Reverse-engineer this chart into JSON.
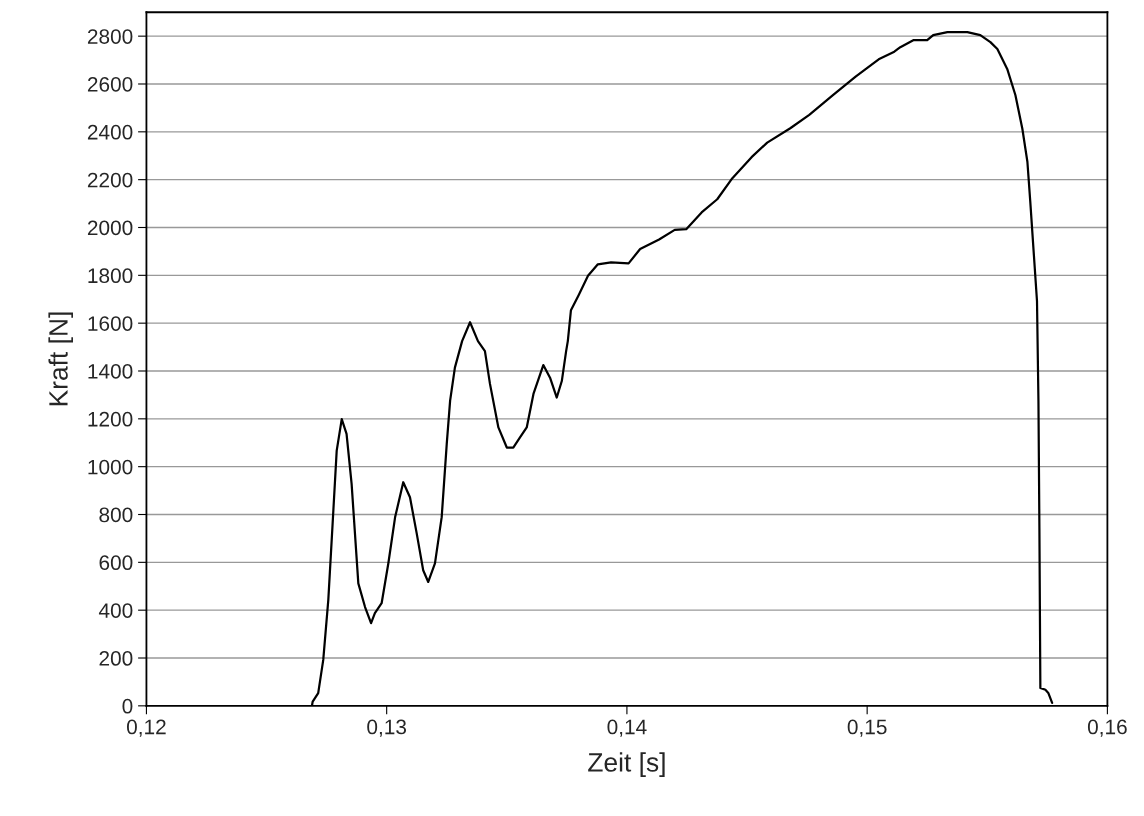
{
  "chart_data": {
    "type": "line",
    "xlabel": "Zeit [s]",
    "ylabel": "Kraft [N]",
    "xlim": [
      0.12,
      0.16
    ],
    "xticks": [
      {
        "value": 0.12,
        "label": "0,12"
      },
      {
        "value": 0.13,
        "label": "0,13"
      },
      {
        "value": 0.14,
        "label": "0,14"
      },
      {
        "value": 0.15,
        "label": "0,15"
      },
      {
        "value": 0.16,
        "label": "0,16"
      }
    ],
    "ylim": [
      0,
      2900
    ],
    "yticks": [
      0,
      200,
      400,
      600,
      800,
      1000,
      1200,
      1400,
      1600,
      1800,
      2000,
      2200,
      2400,
      2600,
      2800
    ],
    "grid": "y",
    "legend": false,
    "marker": "none",
    "line_style": "solid",
    "series": [
      {
        "color": "#000000",
        "x": [
          0.12689,
          0.12692,
          0.12715,
          0.12736,
          0.12757,
          0.12775,
          0.12792,
          0.12813,
          0.12833,
          0.12854,
          0.12882,
          0.1291,
          0.12935,
          0.12951,
          0.12979,
          0.13007,
          0.13035,
          0.13069,
          0.13097,
          0.13125,
          0.13152,
          0.13173,
          0.13201,
          0.13229,
          0.1325,
          0.13264,
          0.13284,
          0.13314,
          0.13347,
          0.1338,
          0.13409,
          0.1343,
          0.13465,
          0.135,
          0.13527,
          0.13555,
          0.13583,
          0.13611,
          0.13652,
          0.1368,
          0.13708,
          0.13729,
          0.13747,
          0.13754,
          0.13767,
          0.13799,
          0.13838,
          0.13879,
          0.13934,
          0.14007,
          0.14055,
          0.14134,
          0.14199,
          0.14247,
          0.14311,
          0.14376,
          0.14439,
          0.14519,
          0.14584,
          0.1468,
          0.14759,
          0.14855,
          0.14952,
          0.15048,
          0.15113,
          0.15138,
          0.15192,
          0.1525,
          0.15275,
          0.15334,
          0.15417,
          0.15471,
          0.15513,
          0.15542,
          0.15583,
          0.15617,
          0.15646,
          0.15667,
          0.15679,
          0.15707,
          0.15713,
          0.15717,
          0.15721,
          0.15742,
          0.15754,
          0.1577
        ],
        "values": [
          0,
          18,
          53,
          192,
          442,
          762,
          1067,
          1199,
          1137,
          929,
          512,
          413,
          346,
          388,
          429,
          596,
          788,
          935,
          872,
          721,
          567,
          518,
          596,
          789,
          1094,
          1275,
          1414,
          1525,
          1604,
          1525,
          1483,
          1346,
          1164,
          1080,
          1080,
          1122,
          1164,
          1304,
          1425,
          1372,
          1289,
          1358,
          1483,
          1525,
          1654,
          1717,
          1798,
          1846,
          1854,
          1850,
          1910,
          1950,
          1990,
          1993,
          2063,
          2118,
          2206,
          2294,
          2355,
          2415,
          2471,
          2551,
          2631,
          2703,
          2735,
          2754,
          2783,
          2783,
          2804,
          2817,
          2817,
          2804,
          2775,
          2746,
          2663,
          2554,
          2413,
          2275,
          2108,
          1692,
          1275,
          742,
          75,
          67,
          54,
          12
        ]
      }
    ]
  }
}
